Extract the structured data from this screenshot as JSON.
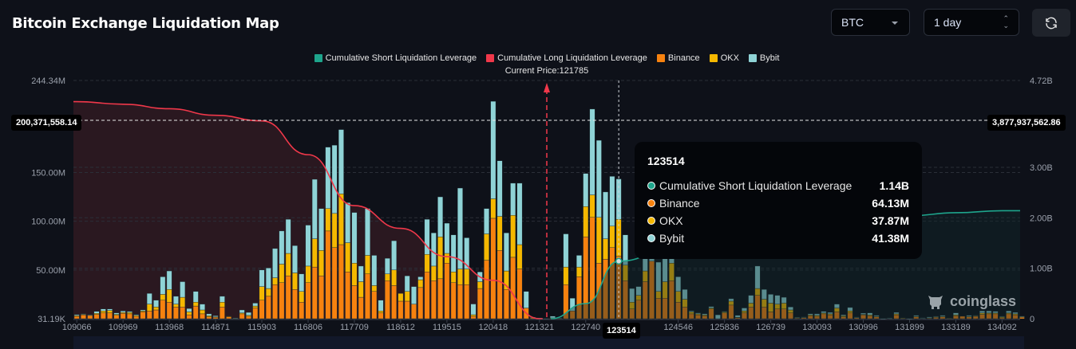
{
  "header": {
    "title": "Bitcoin Exchange Liquidation Map",
    "coin_select": "BTC",
    "range_select": "1 day",
    "refresh_icon": "refresh-icon"
  },
  "colors": {
    "background": "#0e1119",
    "short": "#1ea58c",
    "long": "#f0384a",
    "binance": "#f7820f",
    "okx": "#f5b800",
    "bybit": "#8fd3d6"
  },
  "chart_data": {
    "type": "bar",
    "legend": [
      "Cumulative Short Liquidation Leverage",
      "Cumulative Long Liquidation Leverage",
      "Binance",
      "OKX",
      "Bybit"
    ],
    "legend_position": "top",
    "current_price_label": "Current Price:121785",
    "current_price": 121785,
    "x_ticks": [
      "109066",
      "109969",
      "113968",
      "114871",
      "115903",
      "116806",
      "117709",
      "118612",
      "119515",
      "120418",
      "121321",
      "122740",
      "124546",
      "125836",
      "126739",
      "130093",
      "130996",
      "131899",
      "133189",
      "134092"
    ],
    "left_axis": {
      "ticks": [
        "244.34M",
        "150.00M",
        "100.00M",
        "50.00M",
        "31.19K"
      ],
      "tick_values": [
        244.34,
        150,
        100,
        50,
        0.03119
      ],
      "unit": "M",
      "range": [
        0,
        244.34
      ]
    },
    "right_axis": {
      "ticks": [
        "4.72B",
        "3.00B",
        "2.00B",
        "1.00B",
        "0"
      ],
      "tick_values": [
        4.72,
        3,
        2,
        1,
        0
      ],
      "unit": "B",
      "range": [
        0,
        4.72
      ]
    },
    "grid": true,
    "stack_series": [
      "Binance",
      "OKX",
      "Bybit"
    ],
    "bars_musd_binance_okx_bybit": [
      [
        2.5,
        0.8,
        1
      ],
      [
        4,
        0.5,
        0.5
      ],
      [
        3.5,
        0.3,
        0.3
      ],
      [
        4.5,
        1,
        2
      ],
      [
        6,
        2,
        2
      ],
      [
        6,
        2.5,
        1.5
      ],
      [
        3.5,
        1,
        1.5
      ],
      [
        5.5,
        1,
        1.5
      ],
      [
        5,
        1.5,
        1
      ],
      [
        2.5,
        1,
        0.8
      ],
      [
        7,
        1,
        1
      ],
      [
        8,
        7,
        11
      ],
      [
        9,
        3,
        7
      ],
      [
        19,
        6,
        18
      ],
      [
        17,
        13,
        19
      ],
      [
        12,
        3,
        8
      ],
      [
        12,
        10,
        16
      ],
      [
        4,
        3,
        3.5
      ],
      [
        13,
        4,
        11
      ],
      [
        5,
        4,
        6
      ],
      [
        2,
        1,
        2
      ],
      [
        1.5,
        0.5,
        1
      ],
      [
        12,
        5,
        6
      ],
      [
        2,
        0.5,
        0
      ],
      [
        0.3,
        0.2,
        0.3
      ],
      [
        5,
        1,
        3
      ],
      [
        2.5,
        1,
        3
      ],
      [
        11,
        2,
        3
      ],
      [
        19,
        14,
        17
      ],
      [
        23,
        8,
        21
      ],
      [
        35,
        7,
        30
      ],
      [
        37,
        19,
        34
      ],
      [
        44,
        23,
        35
      ],
      [
        30,
        17,
        28
      ],
      [
        17,
        11,
        18
      ],
      [
        37,
        17,
        42
      ],
      [
        53,
        29,
        61
      ],
      [
        44,
        26,
        43
      ],
      [
        90,
        23,
        63
      ],
      [
        73,
        35,
        70
      ],
      [
        76,
        52,
        66
      ],
      [
        48,
        30,
        41
      ],
      [
        34,
        23,
        52
      ],
      [
        22,
        16,
        16
      ],
      [
        46,
        19,
        48
      ],
      [
        28,
        6,
        31
      ],
      [
        6,
        2,
        11
      ],
      [
        39,
        7,
        16
      ],
      [
        34,
        16,
        30
      ],
      [
        18,
        8,
        0
      ],
      [
        18,
        10,
        16
      ],
      [
        15,
        0,
        18
      ],
      [
        32,
        8,
        3
      ],
      [
        48,
        18,
        36
      ],
      [
        39,
        15,
        34
      ],
      [
        41,
        43,
        41
      ],
      [
        57,
        10,
        31
      ],
      [
        37,
        11,
        38
      ],
      [
        35,
        16,
        83
      ],
      [
        35,
        16,
        32
      ],
      [
        2.5,
        1.6,
        11
      ],
      [
        31,
        7,
        10
      ],
      [
        60,
        27,
        26
      ],
      [
        103,
        20,
        100
      ],
      [
        70,
        35,
        57
      ],
      [
        30,
        19,
        39
      ],
      [
        63,
        43,
        33
      ],
      [
        51,
        25,
        63
      ],
      [
        11,
        0,
        17
      ],
      [
        1,
        0.3,
        0.3
      ],
      [
        0,
        0,
        0.8
      ],
      [
        0,
        0,
        0.2
      ],
      [
        0.5,
        0.5,
        1.5
      ],
      [
        0.3,
        0.2,
        0.3
      ],
      [
        35,
        18,
        34
      ],
      [
        8,
        0,
        13
      ],
      [
        43,
        10,
        12
      ],
      [
        84,
        31,
        34
      ],
      [
        104,
        23,
        88
      ],
      [
        57,
        47,
        79
      ],
      [
        61,
        21,
        48
      ],
      [
        73,
        22,
        51
      ],
      [
        64.13,
        37.87,
        41.38
      ],
      [
        39,
        16,
        31
      ],
      [
        10,
        7,
        14
      ],
      [
        19,
        5,
        9
      ],
      [
        38,
        11,
        18
      ],
      [
        59,
        0,
        13
      ],
      [
        21,
        7,
        30
      ],
      [
        21,
        17,
        30
      ],
      [
        39,
        18,
        7
      ],
      [
        17,
        11,
        15
      ],
      [
        12,
        8,
        10
      ],
      [
        5,
        2,
        1
      ],
      [
        4,
        1,
        1
      ],
      [
        3,
        1,
        1
      ],
      [
        10,
        1,
        1.5
      ],
      [
        0,
        0,
        4
      ],
      [
        6,
        1,
        0.5
      ],
      [
        14,
        4,
        2.5
      ],
      [
        1,
        0.5,
        2
      ],
      [
        6,
        2,
        3
      ],
      [
        12,
        4,
        8
      ],
      [
        24,
        7,
        23
      ],
      [
        12,
        8,
        10
      ],
      [
        7,
        9,
        9
      ],
      [
        10,
        5,
        9
      ],
      [
        10,
        6,
        6
      ],
      [
        6,
        3,
        3
      ],
      [
        0.8,
        0.4,
        0.4
      ],
      [
        1,
        0.5,
        0.3
      ],
      [
        3,
        1,
        1
      ],
      [
        2.5,
        1,
        1.5
      ],
      [
        5,
        1,
        1.5
      ],
      [
        4,
        1,
        1.5
      ],
      [
        7,
        4,
        4
      ],
      [
        2,
        1,
        1
      ],
      [
        6,
        2,
        3.5
      ],
      [
        1,
        0.5,
        0.2
      ],
      [
        4,
        0.5,
        1.2
      ],
      [
        3,
        1,
        2
      ],
      [
        2,
        0.5,
        1
      ],
      [
        0,
        0,
        0.1
      ],
      [
        0.5,
        0.2,
        0.1
      ],
      [
        4,
        1,
        1.5
      ],
      [
        0.6,
        0.2,
        0
      ],
      [
        0,
        0,
        0.1
      ],
      [
        2,
        0.5,
        1
      ],
      [
        0.5,
        0.2,
        0.2
      ],
      [
        0.5,
        0.5,
        0.8
      ],
      [
        1.5,
        0.5,
        0.5
      ],
      [
        2,
        0.5,
        1
      ],
      [
        0.4,
        0.3,
        0
      ],
      [
        3,
        1,
        2
      ],
      [
        2.5,
        0,
        0
      ],
      [
        2,
        0.5,
        1
      ],
      [
        2.5,
        0.5,
        0.5
      ],
      [
        4.5,
        1.5,
        2
      ],
      [
        5,
        1,
        2
      ],
      [
        5,
        1,
        1.5
      ],
      [
        1,
        1,
        0.5
      ],
      [
        5,
        1,
        2
      ],
      [
        4,
        1,
        1.5
      ],
      [
        1.5,
        0.5,
        0.5
      ]
    ],
    "cumulative_long_b": [
      [
        "109066",
        4.3
      ],
      [
        "109969",
        4.25
      ],
      [
        "113968",
        4.16
      ],
      [
        "114871",
        4.03
      ],
      [
        "115903",
        3.92
      ],
      [
        "116806",
        3.25
      ],
      [
        "117709",
        2.24
      ],
      [
        "118612",
        1.79
      ],
      [
        "119515",
        1.23
      ],
      [
        "120418",
        0.76
      ],
      [
        "121321",
        0
      ]
    ],
    "cumulative_short_b": [
      [
        "121321",
        0
      ],
      [
        "122740",
        0.3
      ],
      [
        "123514",
        1.14
      ],
      [
        "124546",
        1.45
      ],
      [
        "125836",
        1.65
      ],
      [
        "126739",
        1.8
      ],
      [
        "130093",
        1.9
      ],
      [
        "130996",
        1.97
      ],
      [
        "131899",
        2.04
      ],
      [
        "133189",
        2.1
      ],
      [
        "134092",
        2.14
      ]
    ]
  },
  "crosshair": {
    "left_value": "200,371,558.14",
    "right_value": "3,877,937,562.86",
    "x_label": "123514"
  },
  "tooltip": {
    "title": "123514",
    "rows": [
      {
        "label": "Cumulative Short Liquidation Leverage",
        "value": "1.14B",
        "color": "#1ea58c"
      },
      {
        "label": "Binance",
        "value": "64.13M",
        "color": "#f7820f"
      },
      {
        "label": "OKX",
        "value": "37.87M",
        "color": "#f5b800"
      },
      {
        "label": "Bybit",
        "value": "41.38M",
        "color": "#8fd3d6"
      }
    ]
  },
  "watermark": "coinglass"
}
